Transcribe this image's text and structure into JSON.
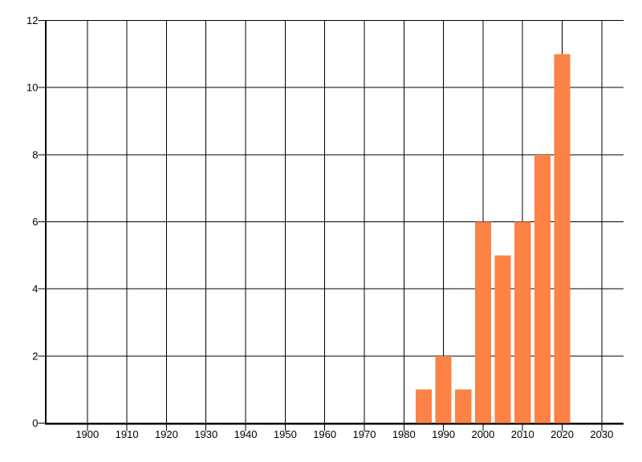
{
  "chart_data": {
    "type": "bar",
    "x": [
      1985,
      1990,
      1995,
      2000,
      2005,
      2010,
      2015,
      2020
    ],
    "values": [
      1,
      2,
      1,
      6,
      5,
      6,
      8,
      11
    ],
    "x_ticks": [
      1900,
      1910,
      1920,
      1930,
      1940,
      1950,
      1960,
      1970,
      1980,
      1990,
      2000,
      2010,
      2020,
      2030
    ],
    "x_tick_labels": [
      "1900",
      "1910",
      "1920",
      "1930",
      "1940",
      "1950",
      "1960",
      "1970",
      "1980",
      "1990",
      "2000",
      "2010",
      "2020",
      "2030"
    ],
    "y_ticks": [
      0,
      2,
      4,
      6,
      8,
      10,
      12
    ],
    "y_tick_labels": [
      "0",
      "2",
      "4",
      "6",
      "8",
      "10",
      "12"
    ],
    "xlim": [
      1889.5,
      2035.5
    ],
    "ylim": [
      0,
      12
    ],
    "bar_width_years": 4.1,
    "grid": true,
    "legend": false,
    "title": "",
    "xlabel": "",
    "ylabel": "",
    "colors": {
      "bar": "#fc8246",
      "grid": "#000000",
      "axis": "#000000",
      "text": "#000000",
      "background": "#ffffff"
    }
  }
}
